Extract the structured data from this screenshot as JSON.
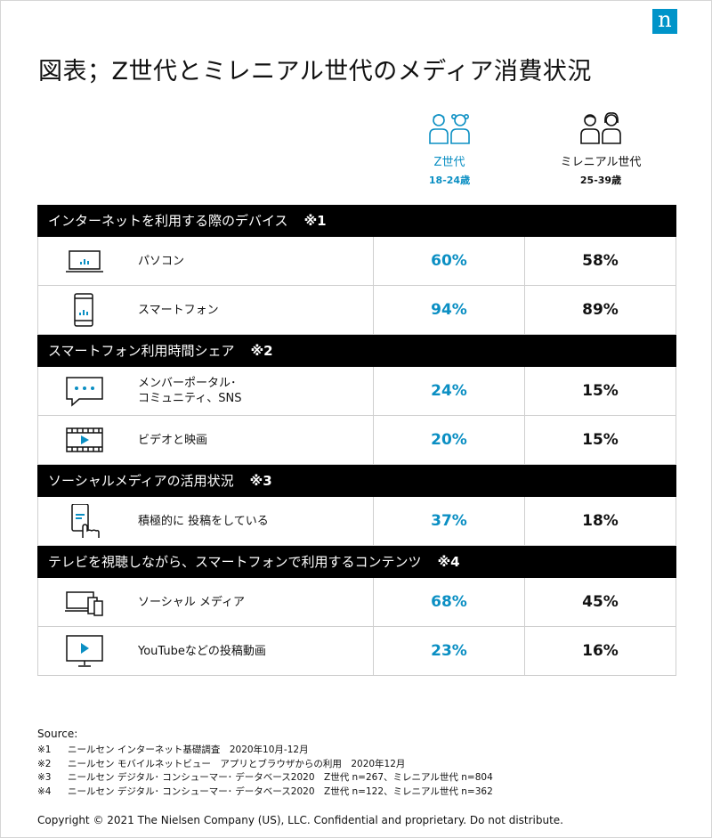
{
  "logo": {
    "letter": "n"
  },
  "title": "図表；Z世代とミレニアル世代のメディア消費状況",
  "columns": [
    {
      "name": "Z世代",
      "age": "18-24歳",
      "color": "#0b8fc3",
      "icon": "young-people-icon"
    },
    {
      "name": "ミレニアル世代",
      "age": "25-39歳",
      "color": "#111111",
      "icon": "adult-people-icon"
    }
  ],
  "sections": [
    {
      "title": "インターネットを利用する際のデバイス",
      "note": "※1",
      "rows": [
        {
          "icon": "laptop-icon",
          "label": "パソコン",
          "z": "60%",
          "m": "58%"
        },
        {
          "icon": "smartphone-icon",
          "label": "スマートフォン",
          "z": "94%",
          "m": "89%"
        }
      ]
    },
    {
      "title": "スマートフォン利用時間シェア",
      "note": "※2",
      "rows": [
        {
          "icon": "chat-bubble-icon",
          "label": "メンバーポータル･\nコミュニティ、SNS",
          "z": "24%",
          "m": "15%"
        },
        {
          "icon": "video-film-icon",
          "label": "ビデオと映画",
          "z": "20%",
          "m": "15%"
        }
      ]
    },
    {
      "title": "ソーシャルメディアの活用状況",
      "note": "※3",
      "rows": [
        {
          "icon": "phone-tap-icon",
          "label": "積極的に 投稿をしている",
          "z": "37%",
          "m": "18%"
        }
      ]
    },
    {
      "title": "テレビを視聴しながら、スマートフォンで利用するコンテンツ",
      "note": "※4",
      "rows": [
        {
          "icon": "multi-device-icon",
          "label": "ソーシャル メディア",
          "z": "68%",
          "m": "45%"
        },
        {
          "icon": "monitor-play-icon",
          "label": "YouTubeなどの投稿動画",
          "z": "23%",
          "m": "16%"
        }
      ]
    }
  ],
  "source_label": "Source:",
  "notes": [
    {
      "mark": "※1",
      "text": "ニールセン インターネット基礎調査　2020年10月-12月"
    },
    {
      "mark": "※2",
      "text": "ニールセン モバイルネットビュー　アプリとブラウザからの利用　2020年12月"
    },
    {
      "mark": "※3",
      "text": "ニールセン デジタル･ コンシューマー･ データベース2020　Z世代 n=267、ミレニアル世代 n=804"
    },
    {
      "mark": "※4",
      "text": "ニールセン デジタル･ コンシューマー･ データベース2020　Z世代 n=122、ミレニアル世代 n=362"
    }
  ],
  "copyright": "Copyright © 2021 The Nielsen Company (US), LLC. Confidential and proprietary. Do not distribute.",
  "chart_data": {
    "type": "table",
    "title": "図表；Z世代とミレニアル世代のメディア消費状況",
    "columns": [
      "Z世代 18-24歳",
      "ミレニアル世代 25-39歳"
    ],
    "groups": [
      {
        "name": "インターネットを利用する際のデバイス ※1",
        "rows": [
          {
            "label": "パソコン",
            "values": [
              60,
              58
            ]
          },
          {
            "label": "スマートフォン",
            "values": [
              94,
              89
            ]
          }
        ]
      },
      {
        "name": "スマートフォン利用時間シェア ※2",
        "rows": [
          {
            "label": "メンバーポータル･コミュニティ、SNS",
            "values": [
              24,
              15
            ]
          },
          {
            "label": "ビデオと映画",
            "values": [
              20,
              15
            ]
          }
        ]
      },
      {
        "name": "ソーシャルメディアの活用状況 ※3",
        "rows": [
          {
            "label": "積極的に 投稿をしている",
            "values": [
              37,
              18
            ]
          }
        ]
      },
      {
        "name": "テレビを視聴しながら、スマートフォンで利用するコンテンツ ※4",
        "rows": [
          {
            "label": "ソーシャル メディア",
            "values": [
              68,
              45
            ]
          },
          {
            "label": "YouTubeなどの投稿動画",
            "values": [
              23,
              16
            ]
          }
        ]
      }
    ]
  }
}
